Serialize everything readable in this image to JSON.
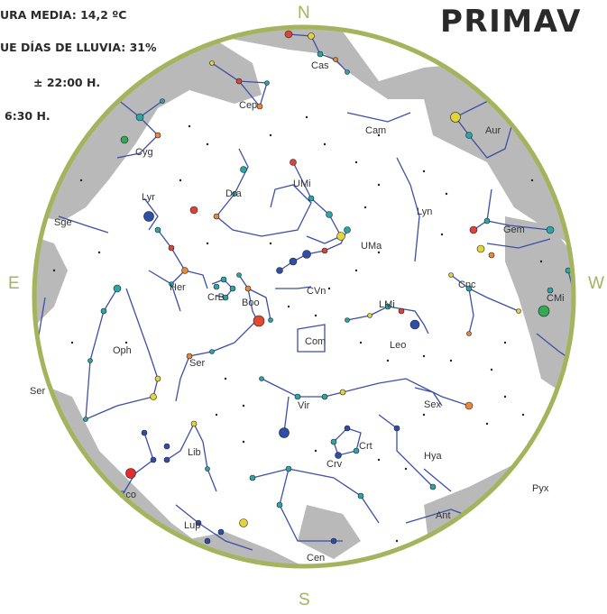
{
  "header": {
    "temperature": "URA MEDIA: 14,2 ºC",
    "rain": "UE DÍAS DE LLUVIA: 31%",
    "time1": "± 22:00 H.",
    "time2": "6:30 H.",
    "season": "PRIMAV"
  },
  "compass": {
    "north": "N",
    "south": "S",
    "east": "E",
    "west": "W"
  },
  "constellations": [
    "Cas",
    "Cep",
    "Cam",
    "Aur",
    "Cyg",
    "Dra",
    "UMi",
    "Lyr",
    "Lyn",
    "Gem",
    "Sge",
    "UMa",
    "Her",
    "CrB",
    "Boo",
    "CVn",
    "LMi",
    "Cnc",
    "CMi",
    "Oph",
    "Com",
    "Leo",
    "Ser",
    "Vir",
    "Sex",
    "Lib",
    "Crt",
    "Hya",
    "Crv",
    "Sco",
    "Lup",
    "Ant",
    "Cen",
    "Pyx"
  ],
  "colors": {
    "ring": "#a4b45d",
    "milky_way": "#b9b9b9",
    "lines": "#3d4fa6"
  }
}
